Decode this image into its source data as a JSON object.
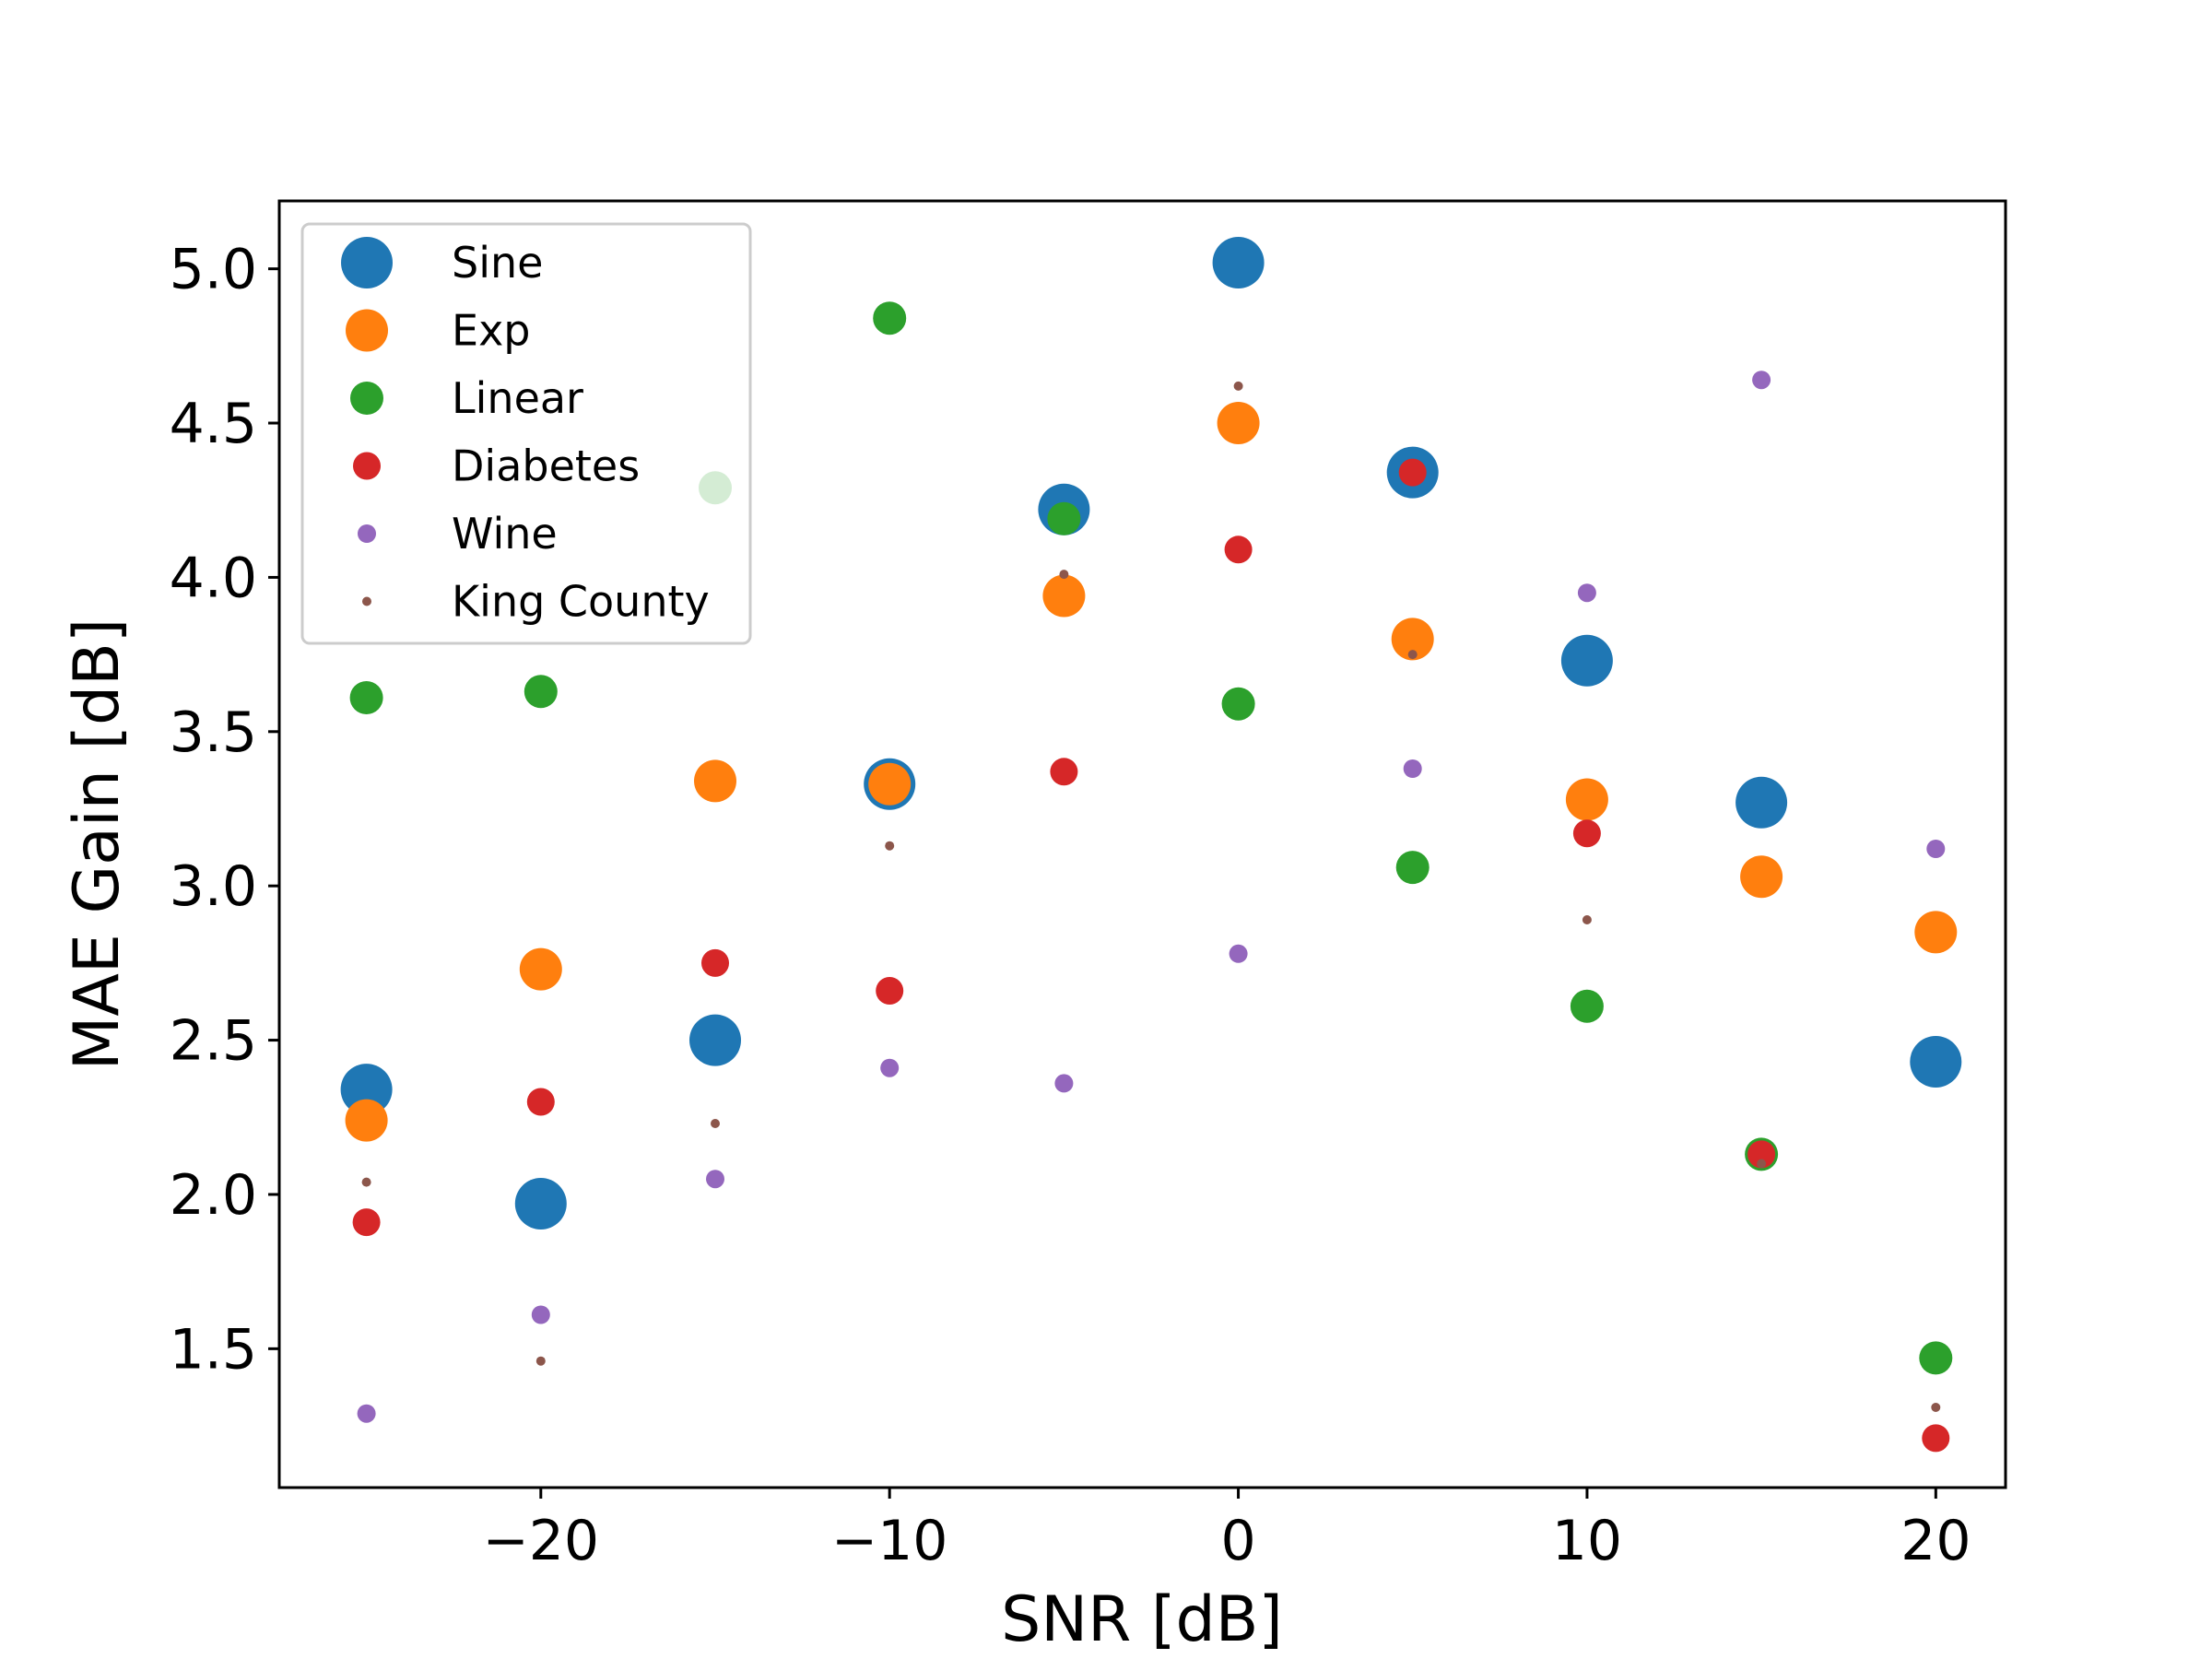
{
  "chart_data": {
    "type": "scatter",
    "xlabel": "SNR [dB]",
    "ylabel": "MAE Gain [dB]",
    "xlim": [
      -27.5,
      22.0
    ],
    "ylim": [
      1.05,
      5.22
    ],
    "xticks": [
      -20,
      -10,
      0,
      10,
      20
    ],
    "xtick_labels": [
      "−20",
      "−10",
      "0",
      "10",
      "20"
    ],
    "yticks": [
      1.5,
      2.0,
      2.5,
      3.0,
      3.5,
      4.0,
      4.5,
      5.0
    ],
    "ytick_labels": [
      "1.5",
      "2.0",
      "2.5",
      "3.0",
      "3.5",
      "4.0",
      "4.5",
      "5.0"
    ],
    "grid": false,
    "legend_position": "top-left",
    "x": [
      -25,
      -20,
      -15,
      -10,
      -5,
      0,
      5,
      10,
      15,
      20
    ],
    "series": [
      {
        "name": "Sine",
        "color": "#1f77b4",
        "size": "large",
        "values": [
          2.34,
          1.97,
          2.5,
          3.33,
          4.22,
          5.02,
          4.34,
          3.73,
          3.27,
          2.43
        ]
      },
      {
        "name": "Exp",
        "color": "#ff7f0e",
        "size": "medium-large",
        "values": [
          2.24,
          2.73,
          3.34,
          3.33,
          3.94,
          4.5,
          3.8,
          3.28,
          3.03,
          2.85
        ]
      },
      {
        "name": "Linear",
        "color": "#2ca02c",
        "size": "medium",
        "values": [
          3.61,
          3.63,
          4.29,
          4.84,
          4.19,
          3.59,
          3.06,
          2.61,
          2.13,
          1.47
        ]
      },
      {
        "name": "Diabetes",
        "color": "#d62728",
        "size": "small-medium",
        "values": [
          1.91,
          2.3,
          2.75,
          2.66,
          3.37,
          4.09,
          4.34,
          3.17,
          2.13,
          1.21
        ]
      },
      {
        "name": "Wine",
        "color": "#9467bd",
        "size": "small",
        "values": [
          1.29,
          1.61,
          2.05,
          2.41,
          2.36,
          2.78,
          3.38,
          3.95,
          4.64,
          3.12
        ]
      },
      {
        "name": "King County",
        "color": "#8c564b",
        "size": "tiny",
        "values": [
          2.04,
          1.46,
          2.23,
          3.13,
          4.01,
          4.62,
          3.75,
          2.89,
          2.1,
          1.31
        ]
      }
    ]
  }
}
